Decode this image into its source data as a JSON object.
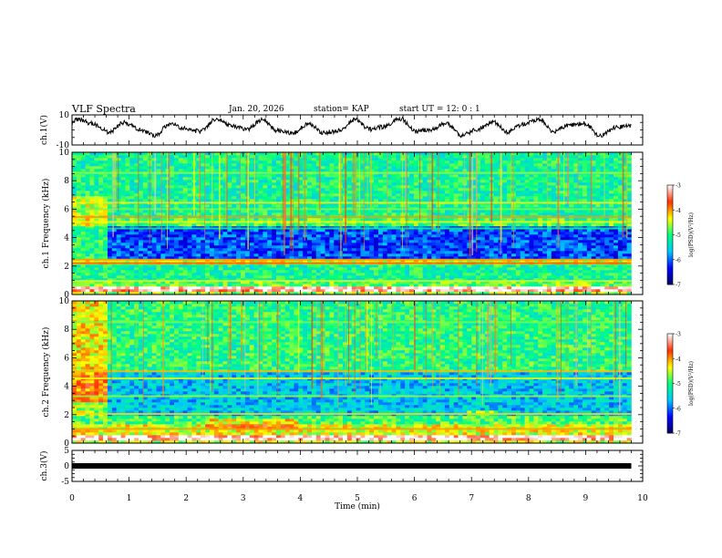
{
  "header": {
    "title": "VLF Spectra",
    "date": "Jan. 20, 2026",
    "station": "station= KAP",
    "start_ut": "start  UT  =   12: 0  : 1"
  },
  "chart_data": [
    {
      "type": "line",
      "title": "ch.1(V)",
      "ylabel": "ch.1(V)",
      "ylim": [
        -10,
        10
      ],
      "yticks": [
        "10",
        "-10"
      ],
      "xlim": [
        0,
        10
      ],
      "x_max_data": 9.8,
      "series": [
        {
          "name": "ch.1 waveform",
          "description": "noisy time series oscillating roughly between -5 and 8 V"
        }
      ]
    },
    {
      "type": "heatmap",
      "title": "ch.1 spectrogram",
      "ylabel": "ch.1  Frequency (kHz)",
      "ylim": [
        0,
        10
      ],
      "yticks": [
        "0",
        "2",
        "4",
        "6",
        "8",
        "10"
      ],
      "xlim": [
        0,
        10
      ],
      "x_max_data": 9.8,
      "colorbar": {
        "label": "log(PSD)(V²/Hz)",
        "range": [
          -7,
          -3
        ],
        "ticks": [
          "-3",
          "-4",
          "-5",
          "-6",
          "-7"
        ],
        "colors": [
          "#000060",
          "#0000ff",
          "#00c8ff",
          "#00ff80",
          "#ffff00",
          "#ff3000",
          "#ffffff"
        ]
      }
    },
    {
      "type": "heatmap",
      "title": "ch.2 spectrogram",
      "ylabel": "ch.2  Frequency (kHz)",
      "ylim": [
        0,
        10
      ],
      "yticks": [
        "0",
        "2",
        "4",
        "6",
        "8",
        "10"
      ],
      "xlim": [
        0,
        10
      ],
      "x_max_data": 9.8,
      "colorbar": {
        "label": "log(PSD)(V²/Hz)",
        "range": [
          -7,
          -3
        ],
        "ticks": [
          "-3",
          "-4",
          "-5",
          "-6",
          "-7"
        ],
        "colors": [
          "#000060",
          "#0000ff",
          "#00c8ff",
          "#00ff80",
          "#ffff00",
          "#ff3000",
          "#ffffff"
        ]
      }
    },
    {
      "type": "line",
      "title": "ch.3(V)",
      "ylabel": "ch.3(V)",
      "ylim": [
        -5,
        5
      ],
      "yticks": [
        "5",
        "0",
        "-5"
      ],
      "xlim": [
        0,
        10
      ],
      "x_max_data": 9.8,
      "series": [
        {
          "name": "ch.3 waveform",
          "constant_value": 0
        }
      ]
    }
  ],
  "xaxis": {
    "label": "Time  (min)",
    "ticks": [
      "0",
      "1",
      "2",
      "3",
      "4",
      "5",
      "6",
      "7",
      "8",
      "9",
      "10"
    ]
  }
}
